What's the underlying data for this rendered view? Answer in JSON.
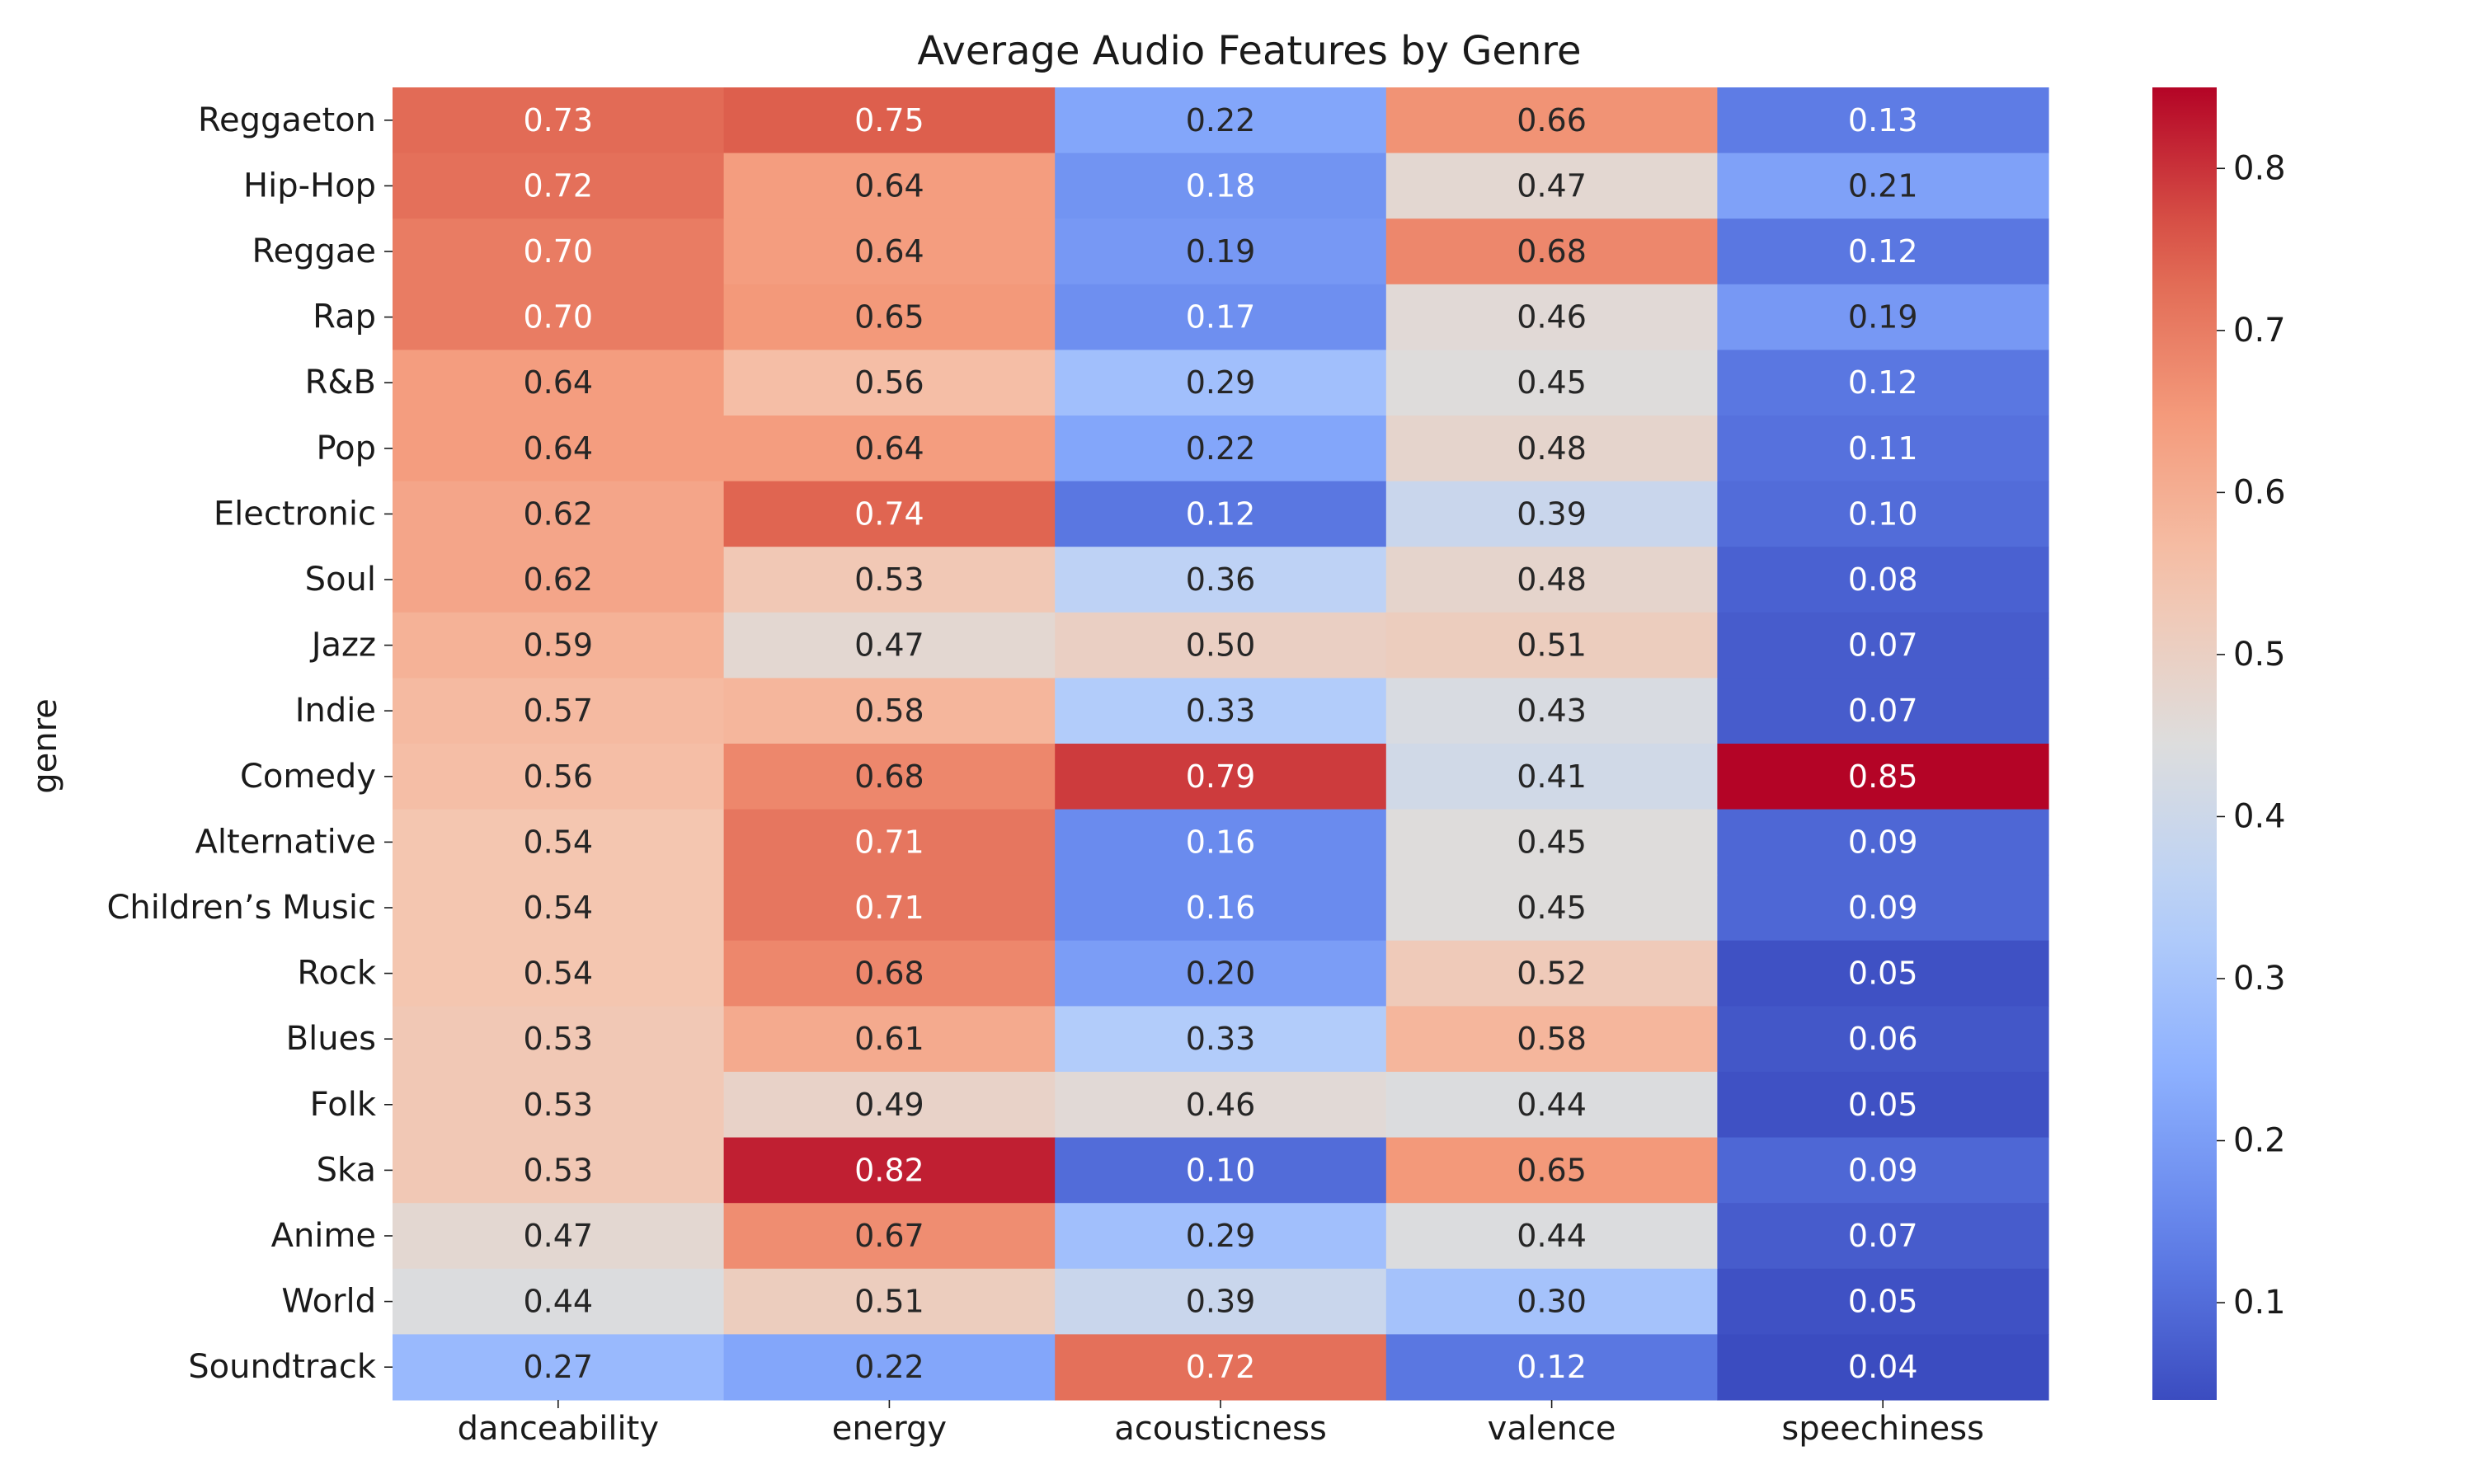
{
  "chart_data": {
    "type": "heatmap",
    "title": "Average Audio Features by Genre",
    "xlabel": "",
    "ylabel": "genre",
    "colormap": "coolwarm",
    "colorbar": {
      "min": 0.04,
      "max": 0.85,
      "ticks": [
        0.1,
        0.2,
        0.3,
        0.4,
        0.5,
        0.6,
        0.7,
        0.8
      ]
    },
    "columns": [
      "danceability",
      "energy",
      "acousticness",
      "valence",
      "speechiness"
    ],
    "rows": [
      "Reggaeton",
      "Hip-Hop",
      "Reggae",
      "Rap",
      "R&B",
      "Pop",
      "Electronic",
      "Soul",
      "Jazz",
      "Indie",
      "Comedy",
      "Alternative",
      "Children’s Music",
      "Rock",
      "Blues",
      "Folk",
      "Ska",
      "Anime",
      "World",
      "Soundtrack"
    ],
    "values": [
      [
        0.73,
        0.75,
        0.22,
        0.66,
        0.13
      ],
      [
        0.72,
        0.64,
        0.18,
        0.47,
        0.21
      ],
      [
        0.7,
        0.64,
        0.19,
        0.68,
        0.12
      ],
      [
        0.7,
        0.65,
        0.17,
        0.46,
        0.19
      ],
      [
        0.64,
        0.56,
        0.29,
        0.45,
        0.12
      ],
      [
        0.64,
        0.64,
        0.22,
        0.48,
        0.11
      ],
      [
        0.62,
        0.74,
        0.12,
        0.39,
        0.1
      ],
      [
        0.62,
        0.53,
        0.36,
        0.48,
        0.08
      ],
      [
        0.59,
        0.47,
        0.5,
        0.51,
        0.07
      ],
      [
        0.57,
        0.58,
        0.33,
        0.43,
        0.07
      ],
      [
        0.56,
        0.68,
        0.79,
        0.41,
        0.85
      ],
      [
        0.54,
        0.71,
        0.16,
        0.45,
        0.09
      ],
      [
        0.54,
        0.71,
        0.16,
        0.45,
        0.09
      ],
      [
        0.54,
        0.68,
        0.2,
        0.52,
        0.05
      ],
      [
        0.53,
        0.61,
        0.33,
        0.58,
        0.06
      ],
      [
        0.53,
        0.49,
        0.46,
        0.44,
        0.05
      ],
      [
        0.53,
        0.82,
        0.1,
        0.65,
        0.09
      ],
      [
        0.47,
        0.67,
        0.29,
        0.44,
        0.07
      ],
      [
        0.44,
        0.51,
        0.39,
        0.3,
        0.05
      ],
      [
        0.27,
        0.22,
        0.72,
        0.12,
        0.04
      ]
    ]
  }
}
